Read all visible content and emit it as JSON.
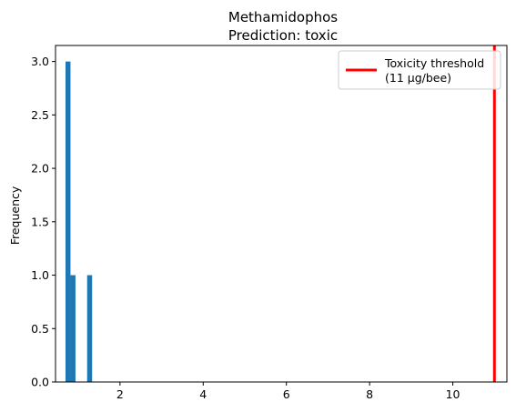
{
  "chart_data": {
    "type": "bar",
    "title": "Methamidophos",
    "subtitle": "Prediction: toxic",
    "xlabel": "",
    "ylabel": "Frequency",
    "xlim": [
      0.45,
      11.3
    ],
    "ylim": [
      0,
      3.15
    ],
    "xticks": [
      2,
      4,
      6,
      8,
      10
    ],
    "yticks": [
      0.0,
      0.5,
      1.0,
      1.5,
      2.0,
      2.5,
      3.0
    ],
    "ytick_labels": [
      "0.0",
      "0.5",
      "1.0",
      "1.5",
      "2.0",
      "2.5",
      "3.0"
    ],
    "bar_width": 0.12,
    "bars": [
      {
        "x": 0.75,
        "value": 3
      },
      {
        "x": 0.87,
        "value": 1
      },
      {
        "x": 1.27,
        "value": 1
      }
    ],
    "bar_color": "#1f77b4",
    "threshold": {
      "x": 11,
      "color": "#ff0000"
    },
    "legend": {
      "position": "top-right",
      "label_line1": "Toxicity threshold",
      "label_line2": "(11 µg/bee)"
    },
    "grid": false
  }
}
